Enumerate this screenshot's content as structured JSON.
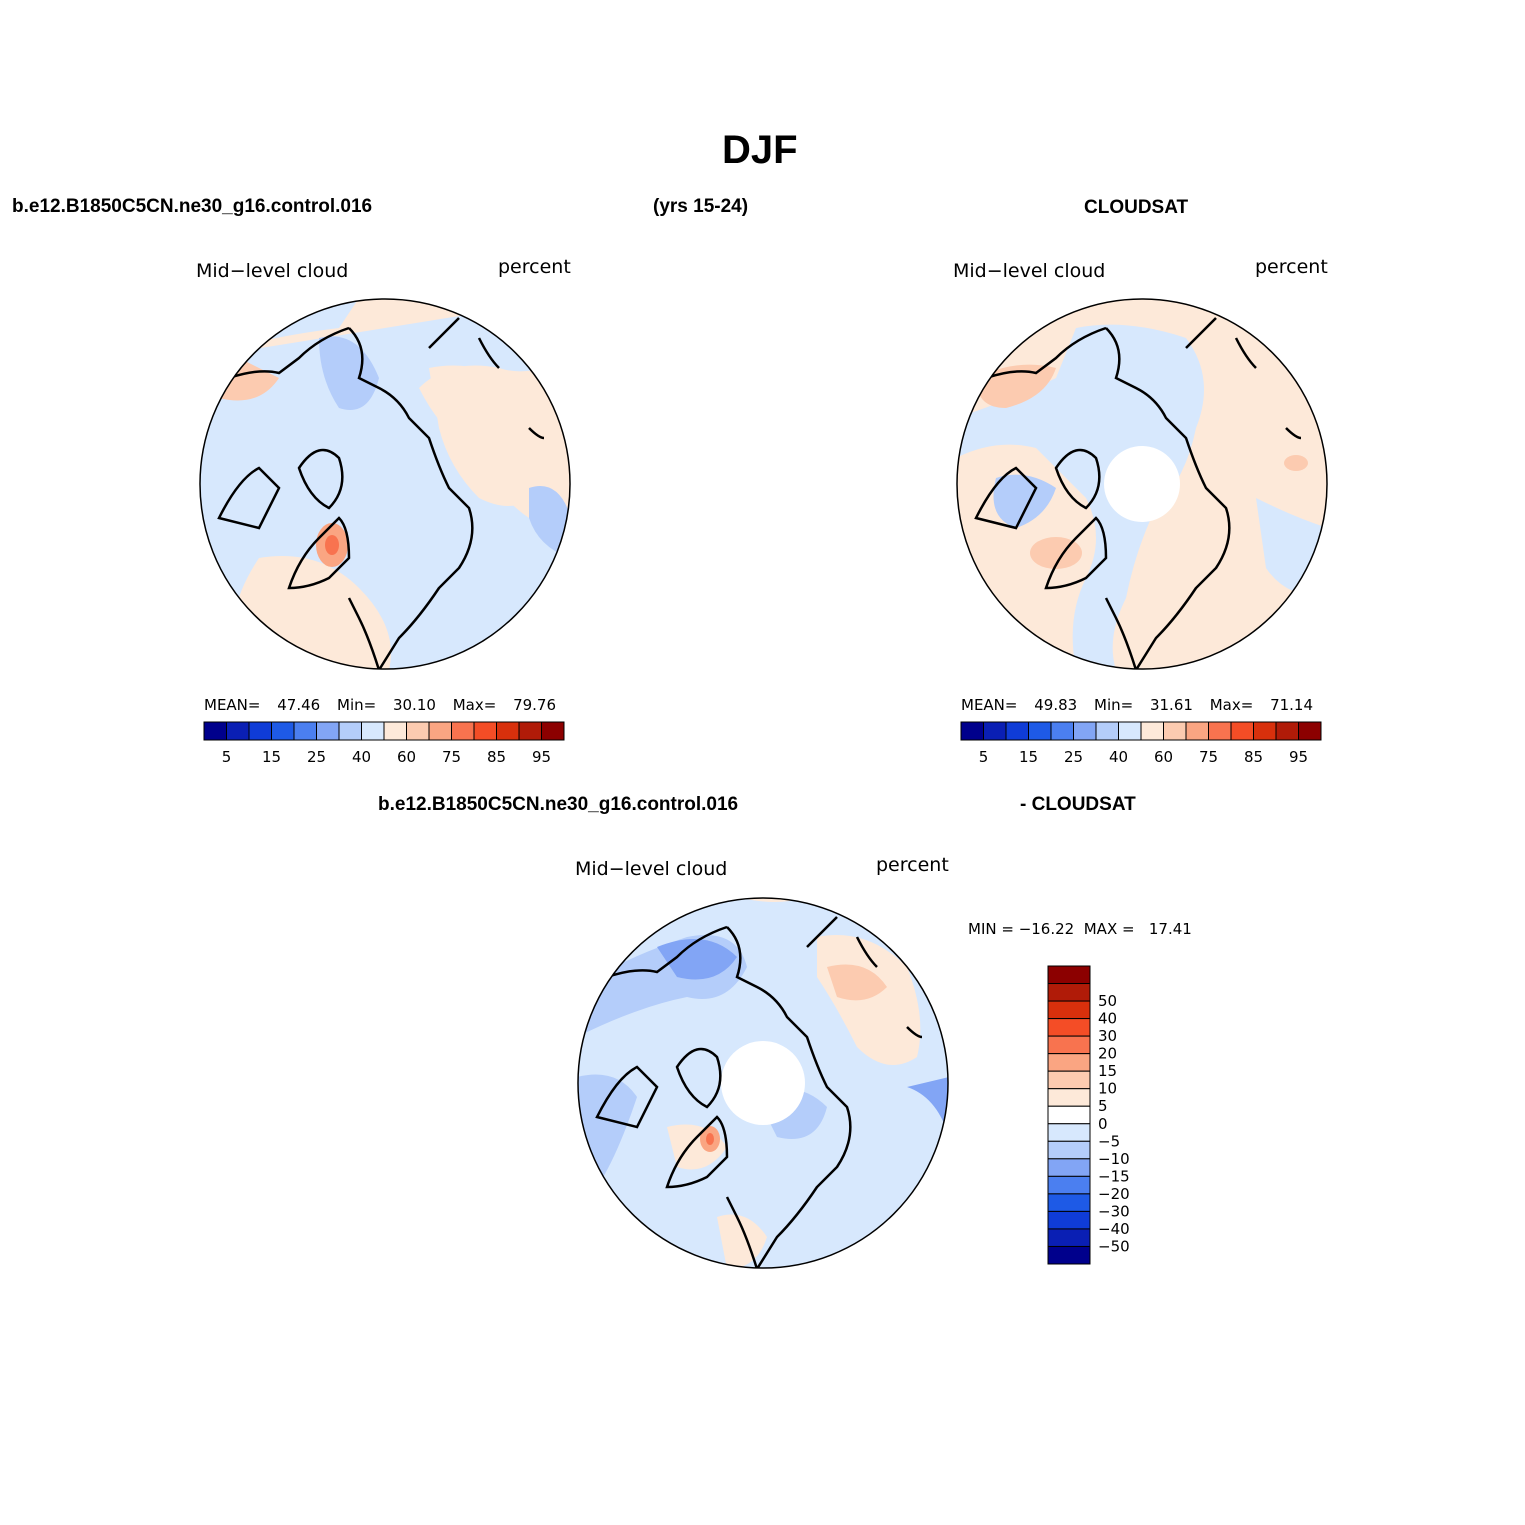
{
  "figure": {
    "title": "DJF",
    "case_left": "b.e12.B1850C5CN.ne30_g16.control.016",
    "years": "(yrs 15-24)",
    "obs_name": "CLOUDSAT",
    "diff_case": "b.e12.B1850C5CN.ne30_g16.control.016",
    "diff_obs": "- CLOUDSAT"
  },
  "panels": [
    {
      "id": "model",
      "variable": "Mid−level cloud",
      "units": "percent",
      "mean_label": "MEAN=",
      "mean": "47.46",
      "min_label": "Min=",
      "min": "30.10",
      "max_label": "Max=",
      "max": "79.76",
      "polar_hole": false
    },
    {
      "id": "cloudsat",
      "variable": "Mid−level cloud",
      "units": "percent",
      "mean_label": "MEAN=",
      "mean": "49.83",
      "min_label": "Min=",
      "min": "31.61",
      "max_label": "Max=",
      "max": "71.14",
      "polar_hole": true
    },
    {
      "id": "difference",
      "variable": "Mid−level cloud",
      "units": "percent",
      "minmax_text": "MIN = −16.22  MAX =   17.41",
      "polar_hole": true
    }
  ],
  "colorbar_abs": {
    "orientation": "horizontal",
    "colors": [
      "#00008c",
      "#0a1fb4",
      "#0f3cd7",
      "#1e5ae6",
      "#4b7ff0",
      "#82a5f5",
      "#b4cdfa",
      "#d7e8fd",
      "#fde9d9",
      "#fccbb0",
      "#faa582",
      "#f8734f",
      "#f44d26",
      "#d8300c",
      "#b01b08",
      "#8c0000"
    ],
    "labels": [
      "5",
      "15",
      "25",
      "40",
      "60",
      "75",
      "85",
      "95"
    ]
  },
  "colorbar_diff": {
    "orientation": "vertical",
    "colors": [
      "#8c0000",
      "#b01b08",
      "#d8300c",
      "#f44d26",
      "#f8734f",
      "#faa582",
      "#fccbb0",
      "#fde9d9",
      "#ffffff",
      "#d7e8fd",
      "#b4cdfa",
      "#82a5f5",
      "#4b7ff0",
      "#1e5ae6",
      "#0f3cd7",
      "#0a1fb4",
      "#00008c"
    ],
    "labels": [
      "50",
      "40",
      "30",
      "20",
      "15",
      "10",
      "5",
      "0",
      "−5",
      "−10",
      "−15",
      "−20",
      "−30",
      "−40",
      "−50"
    ]
  },
  "map_colors": {
    "ocean_light_blue": "#d7e8fd",
    "light_blue": "#b4cdfa",
    "mid_blue": "#82a5f5",
    "blue": "#4b7ff0",
    "light_peach": "#fde9d9",
    "peach": "#fccbb0",
    "orange": "#faa582",
    "red_orange": "#f8734f",
    "white": "#ffffff",
    "coastline": "#000000"
  }
}
